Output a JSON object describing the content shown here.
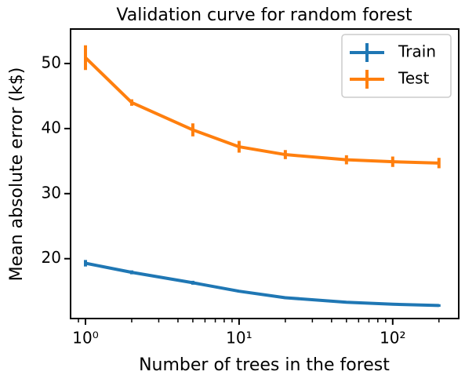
{
  "chart_data": {
    "type": "errorbar-line",
    "title": "Validation curve for random forest",
    "x_label": "Number of trees in the forest",
    "y_label": "Mean absolute error (k$)",
    "x": [
      1,
      2,
      5,
      10,
      20,
      50,
      100,
      200
    ],
    "series": [
      {
        "name": "Train",
        "color": "#1f77b4",
        "values": [
          19.3,
          17.9,
          16.3,
          15.0,
          14.0,
          13.3,
          13.0,
          12.8
        ],
        "errors": [
          0.5,
          0.3,
          0.3,
          0.2,
          0.2,
          0.2,
          0.2,
          0.2
        ]
      },
      {
        "name": "Test",
        "color": "#ff7f0e",
        "values": [
          50.9,
          44.0,
          39.8,
          37.2,
          36.0,
          35.2,
          34.9,
          34.7
        ],
        "errors": [
          1.9,
          0.5,
          1.0,
          0.9,
          0.7,
          0.7,
          0.8,
          0.8
        ]
      }
    ],
    "xscale": "log",
    "xlim": [
      0.8,
      269
    ],
    "xticks": [
      {
        "value": 1,
        "label": "10⁰"
      },
      {
        "value": 10,
        "label": "10¹"
      },
      {
        "value": 100,
        "label": "10²"
      }
    ],
    "xminorticks": [
      0.9,
      2,
      3,
      4,
      5,
      6,
      7,
      8,
      9,
      20,
      30,
      40,
      50,
      60,
      70,
      80,
      90,
      200
    ],
    "ylim": [
      10.8,
      55.3
    ],
    "yticks": [
      20,
      30,
      40,
      50
    ],
    "legend": "upper right",
    "grid": false
  }
}
